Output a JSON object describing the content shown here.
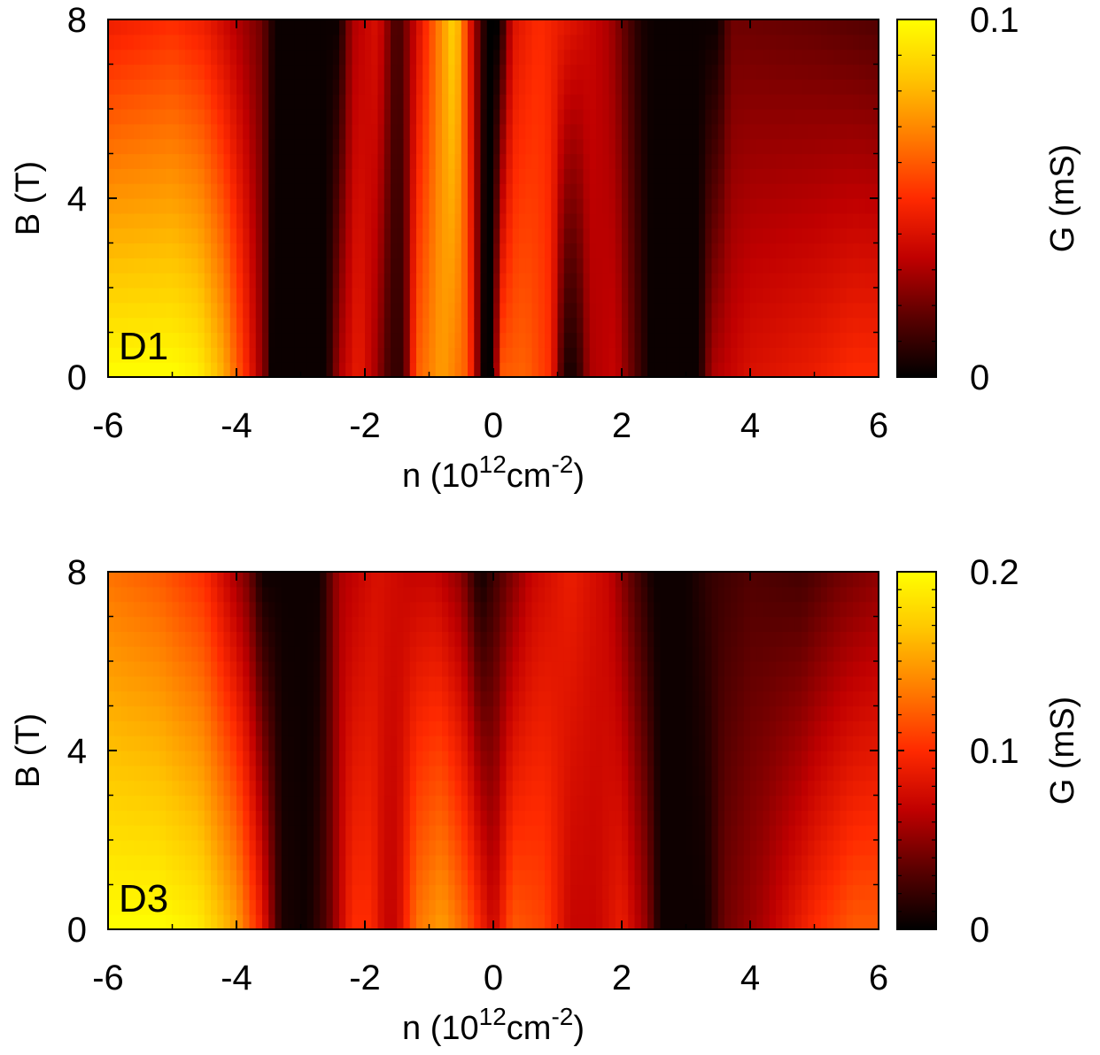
{
  "chart_data": [
    {
      "type": "heatmap",
      "panel_label": "D1",
      "xlabel": "n (10¹²cm⁻²)",
      "xlabel_parts": {
        "pre": "n (10",
        "sup1": "12",
        "mid": "cm",
        "sup2": "-2",
        "post": ")"
      },
      "ylabel": "B (T)",
      "zlabel": "G (mS)",
      "xlim": [
        -6,
        6
      ],
      "ylim": [
        0,
        8
      ],
      "zlim": [
        0,
        0.1
      ],
      "x_ticks": [
        "-6",
        "-4",
        "-2",
        "0",
        "2",
        "4",
        "6"
      ],
      "y_ticks": [
        "0",
        "4",
        "8"
      ],
      "z_ticks": [
        "0",
        "0.1"
      ],
      "colormap": [
        "#000000",
        "#5a0000",
        "#c00000",
        "#ff2a00",
        "#ff7a00",
        "#ffc400",
        "#ffff00"
      ],
      "profile_b0": [
        [
          -6,
          0.1
        ],
        [
          -5.5,
          0.1
        ],
        [
          -5,
          0.1
        ],
        [
          -4.6,
          0.096
        ],
        [
          -4.2,
          0.078
        ],
        [
          -3.8,
          0.045
        ],
        [
          -3.55,
          0.02
        ],
        [
          -3.45,
          0.002
        ],
        [
          -2.6,
          0.002
        ],
        [
          -2.4,
          0.03
        ],
        [
          -2.1,
          0.045
        ],
        [
          -1.85,
          0.03
        ],
        [
          -1.6,
          0.01
        ],
        [
          -1.4,
          0.01
        ],
        [
          -1.2,
          0.06
        ],
        [
          -0.8,
          0.075
        ],
        [
          -0.4,
          0.06
        ],
        [
          -0.15,
          0.002
        ],
        [
          0.0,
          0.0
        ],
        [
          0.1,
          0.06
        ],
        [
          0.5,
          0.062
        ],
        [
          0.9,
          0.05
        ],
        [
          1.1,
          0.005
        ],
        [
          1.3,
          0.005
        ],
        [
          1.5,
          0.03
        ],
        [
          1.9,
          0.035
        ],
        [
          2.3,
          0.01
        ],
        [
          2.45,
          0.002
        ],
        [
          3.2,
          0.002
        ],
        [
          3.4,
          0.03
        ],
        [
          4,
          0.04
        ],
        [
          5,
          0.045
        ],
        [
          5.6,
          0.05
        ],
        [
          6,
          0.05
        ]
      ],
      "profile_b8": [
        [
          -6,
          0.045
        ],
        [
          -5,
          0.05
        ],
        [
          -4.5,
          0.045
        ],
        [
          -3.6,
          0.02
        ],
        [
          -3.4,
          0.002
        ],
        [
          -2.4,
          0.002
        ],
        [
          -2.2,
          0.03
        ],
        [
          -1.8,
          0.04
        ],
        [
          -1.5,
          0.01
        ],
        [
          -1.1,
          0.045
        ],
        [
          -0.6,
          0.09
        ],
        [
          -0.3,
          0.03
        ],
        [
          -0.1,
          0.0
        ],
        [
          0.1,
          0.0
        ],
        [
          0.3,
          0.04
        ],
        [
          0.7,
          0.05
        ],
        [
          1.0,
          0.045
        ],
        [
          1.3,
          0.04
        ],
        [
          1.8,
          0.03
        ],
        [
          2.3,
          0.005
        ],
        [
          2.5,
          0.002
        ],
        [
          3.5,
          0.002
        ],
        [
          3.7,
          0.02
        ],
        [
          5,
          0.018
        ],
        [
          6,
          0.015
        ]
      ]
    },
    {
      "type": "heatmap",
      "panel_label": "D3",
      "xlabel": "n (10¹²cm⁻²)",
      "xlabel_parts": {
        "pre": "n (10",
        "sup1": "12",
        "mid": "cm",
        "sup2": "-2",
        "post": ")"
      },
      "ylabel": "B (T)",
      "zlabel": "G (mS)",
      "xlim": [
        -6,
        6
      ],
      "ylim": [
        0,
        8
      ],
      "zlim": [
        0,
        0.2
      ],
      "x_ticks": [
        "-6",
        "-4",
        "-2",
        "0",
        "2",
        "4",
        "6"
      ],
      "y_ticks": [
        "0",
        "4",
        "8"
      ],
      "z_ticks": [
        "0",
        "0.1",
        "0.2"
      ],
      "colormap": [
        "#000000",
        "#5a0000",
        "#c00000",
        "#ff2a00",
        "#ff7a00",
        "#ffc400",
        "#ffff00"
      ],
      "profile_b0": [
        [
          -6,
          0.2
        ],
        [
          -5.2,
          0.2
        ],
        [
          -4.6,
          0.19
        ],
        [
          -4.0,
          0.15
        ],
        [
          -3.6,
          0.09
        ],
        [
          -3.3,
          0.01
        ],
        [
          -2.9,
          0.005
        ],
        [
          -2.6,
          0.03
        ],
        [
          -2.2,
          0.1
        ],
        [
          -1.9,
          0.1
        ],
        [
          -1.7,
          0.07
        ],
        [
          -1.5,
          0.07
        ],
        [
          -1.2,
          0.13
        ],
        [
          -0.8,
          0.15
        ],
        [
          -0.4,
          0.12
        ],
        [
          0.0,
          0.07
        ],
        [
          0.3,
          0.12
        ],
        [
          0.8,
          0.11
        ],
        [
          1.2,
          0.07
        ],
        [
          1.6,
          0.07
        ],
        [
          2.0,
          0.09
        ],
        [
          2.4,
          0.05
        ],
        [
          2.6,
          0.005
        ],
        [
          3.3,
          0.005
        ],
        [
          3.6,
          0.04
        ],
        [
          4.2,
          0.06
        ],
        [
          5,
          0.1
        ],
        [
          5.6,
          0.12
        ],
        [
          6,
          0.12
        ]
      ],
      "profile_b8": [
        [
          -6,
          0.13
        ],
        [
          -5.2,
          0.12
        ],
        [
          -4.5,
          0.1
        ],
        [
          -3.8,
          0.04
        ],
        [
          -3.6,
          0.005
        ],
        [
          -2.7,
          0.005
        ],
        [
          -2.4,
          0.06
        ],
        [
          -1.8,
          0.08
        ],
        [
          -1.3,
          0.07
        ],
        [
          -0.9,
          0.07
        ],
        [
          -0.5,
          0.05
        ],
        [
          -0.2,
          0.005
        ],
        [
          0.1,
          0.03
        ],
        [
          0.6,
          0.07
        ],
        [
          1.2,
          0.09
        ],
        [
          1.8,
          0.07
        ],
        [
          2.2,
          0.03
        ],
        [
          2.5,
          0.005
        ],
        [
          3.0,
          0.005
        ],
        [
          3.4,
          0.02
        ],
        [
          4.0,
          0.03
        ],
        [
          4.8,
          0.025
        ],
        [
          5.4,
          0.04
        ],
        [
          6,
          0.05
        ]
      ]
    }
  ]
}
